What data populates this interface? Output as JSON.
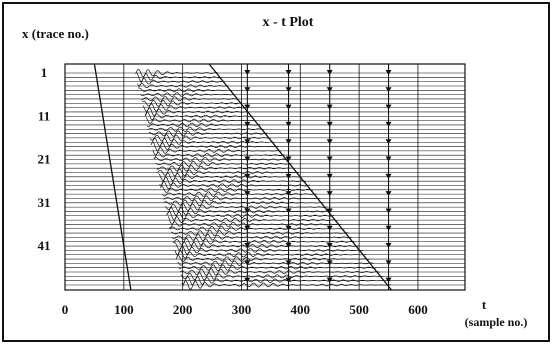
{
  "chart_data": {
    "type": "seismic-wiggle",
    "title": "x - t Plot",
    "ylabel": "x  (trace no.)",
    "xlabel_symbol": "t",
    "xlabel_unit": "(sample no.)",
    "x_ticks": [
      0,
      100,
      200,
      300,
      400,
      500,
      600
    ],
    "y_ticks": [
      1,
      11,
      21,
      31,
      41
    ],
    "xlim": [
      0,
      680
    ],
    "trace_range": [
      1,
      50
    ],
    "trace_count": 50,
    "grid": true,
    "lines": [
      {
        "name": "",
        "points": [
          [
            50,
            1
          ],
          [
            112,
            50
          ]
        ]
      },
      {
        "name": "",
        "points": [
          [
            245,
            1
          ],
          [
            555,
            50
          ]
        ]
      }
    ],
    "wavefield": {
      "onset_first_trace": 120,
      "onset_last_trace": 200,
      "end_first_trace": 260,
      "end_last_trace": 555
    },
    "markers": [
      {
        "t": 310
      },
      {
        "t": 380
      },
      {
        "t": 450
      },
      {
        "t": 550
      }
    ],
    "colors": {
      "ink": "#111111",
      "background": "#ffffff"
    }
  }
}
